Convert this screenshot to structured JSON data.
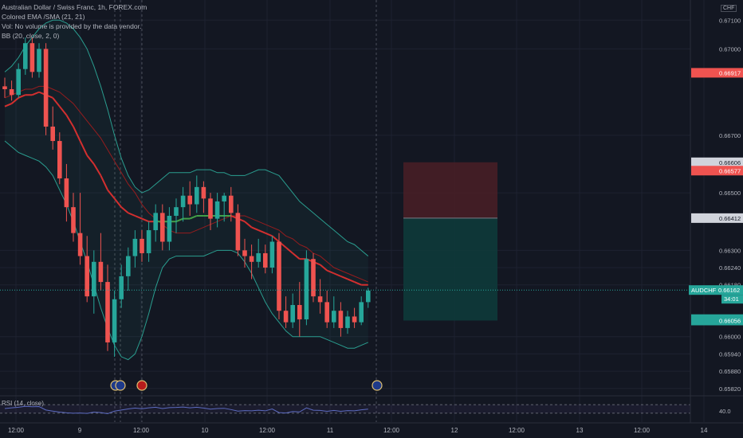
{
  "legend": {
    "title": "Australian Dollar / Swiss Franc, 1h, FOREX.com",
    "ema": "Colored EMA /SMA (21, 21)",
    "vol": "Vol: No volume is provided by the data vendor.",
    "bb": "BB (20, close, 2, 0)"
  },
  "rsi_label": "RSI (14, close)",
  "rsi_value": "40.0",
  "currency": "CHF",
  "colors": {
    "background": "#131722",
    "up": "#26a69a",
    "down": "#ef5350",
    "ema": "#d32f2f",
    "sma": "#43a047",
    "bb": "#2a9d8f",
    "rsi": "#2962ff",
    "stop_zone": "#4a1f26",
    "target_zone": "#0e3a3a"
  },
  "chart_data": {
    "type": "candlestick",
    "symbol": "AUDCHF",
    "interval": "1h",
    "ylim": [
      0.658,
      0.6717
    ],
    "y_ticks": [
      "0.67100",
      "0.67000",
      "0.66700",
      "0.66500",
      "0.66300",
      "0.66240",
      "0.66180",
      "0.66000",
      "0.65940",
      "0.65880",
      "0.65820"
    ],
    "x_ticks": [
      "12:00",
      "9",
      "12:00",
      "10",
      "12:00",
      "11",
      "12:00",
      "12",
      "12:00",
      "13",
      "12:00",
      "14"
    ],
    "price_tags": [
      {
        "label": "0.66917",
        "value": 0.66917,
        "color": "#ef5350"
      },
      {
        "label": "0.66606",
        "value": 0.66606,
        "color": "#d1d4dc"
      },
      {
        "label": "0.66577",
        "value": 0.66577,
        "color": "#ef5350"
      },
      {
        "label": "0.66412",
        "value": 0.66412,
        "color": "#d1d4dc"
      },
      {
        "label": "0.66061",
        "value": 0.66061,
        "color": "#26a69a"
      },
      {
        "label": "0.66056",
        "value": 0.66056,
        "color": "#26a69a"
      }
    ],
    "current": {
      "symbol": "AUDCHF",
      "price": "0.66162",
      "value": 0.66162,
      "countdown": "34:01"
    },
    "position": {
      "entry": 0.66412,
      "stop": 0.66606,
      "target": 0.66056
    },
    "candles": [
      [
        0.6687,
        0.669,
        0.6683,
        0.6686
      ],
      [
        0.6686,
        0.6689,
        0.6682,
        0.6684
      ],
      [
        0.6684,
        0.6695,
        0.6683,
        0.6693
      ],
      [
        0.6693,
        0.6704,
        0.6691,
        0.6702
      ],
      [
        0.6702,
        0.6704,
        0.669,
        0.6692
      ],
      [
        0.6692,
        0.6702,
        0.669,
        0.67
      ],
      [
        0.67,
        0.6702,
        0.667,
        0.6673
      ],
      [
        0.6673,
        0.668,
        0.6665,
        0.6668
      ],
      [
        0.6668,
        0.6671,
        0.6653,
        0.6655
      ],
      [
        0.6655,
        0.666,
        0.664,
        0.6645
      ],
      [
        0.6645,
        0.665,
        0.6633,
        0.6636
      ],
      [
        0.6636,
        0.665,
        0.6625,
        0.6628
      ],
      [
        0.6628,
        0.6635,
        0.6612,
        0.6614
      ],
      [
        0.6614,
        0.663,
        0.6608,
        0.6626
      ],
      [
        0.6626,
        0.6636,
        0.6616,
        0.6619
      ],
      [
        0.6619,
        0.6625,
        0.6595,
        0.6598
      ],
      [
        0.6598,
        0.6616,
        0.6593,
        0.6613
      ],
      [
        0.6613,
        0.6625,
        0.661,
        0.6621
      ],
      [
        0.6621,
        0.6631,
        0.6616,
        0.6628
      ],
      [
        0.6628,
        0.6637,
        0.6624,
        0.6634
      ],
      [
        0.6634,
        0.6637,
        0.6626,
        0.6629
      ],
      [
        0.6629,
        0.664,
        0.6626,
        0.6637
      ],
      [
        0.6637,
        0.6646,
        0.6633,
        0.6643
      ],
      [
        0.6643,
        0.6646,
        0.663,
        0.6633
      ],
      [
        0.6633,
        0.6645,
        0.663,
        0.6642
      ],
      [
        0.6642,
        0.6648,
        0.6636,
        0.6645
      ],
      [
        0.6645,
        0.6652,
        0.664,
        0.6649
      ],
      [
        0.6649,
        0.6654,
        0.6642,
        0.6646
      ],
      [
        0.6646,
        0.6656,
        0.6643,
        0.6652
      ],
      [
        0.6652,
        0.6654,
        0.6643,
        0.6648
      ],
      [
        0.6648,
        0.665,
        0.6637,
        0.6641
      ],
      [
        0.6641,
        0.665,
        0.6638,
        0.6647
      ],
      [
        0.6647,
        0.665,
        0.664,
        0.6649
      ],
      [
        0.6649,
        0.6652,
        0.664,
        0.6643
      ],
      [
        0.6643,
        0.6646,
        0.6628,
        0.663
      ],
      [
        0.663,
        0.6634,
        0.6624,
        0.6628
      ],
      [
        0.6628,
        0.6632,
        0.662,
        0.6626
      ],
      [
        0.6626,
        0.6634,
        0.6624,
        0.6629
      ],
      [
        0.6629,
        0.6632,
        0.6622,
        0.6624
      ],
      [
        0.6624,
        0.6635,
        0.6622,
        0.6633
      ],
      [
        0.6633,
        0.6636,
        0.6606,
        0.6609
      ],
      [
        0.6609,
        0.6614,
        0.6603,
        0.6605
      ],
      [
        0.6605,
        0.6615,
        0.6603,
        0.6611
      ],
      [
        0.6611,
        0.6619,
        0.66,
        0.6606
      ],
      [
        0.6606,
        0.663,
        0.6604,
        0.6627
      ],
      [
        0.6627,
        0.6629,
        0.6612,
        0.6614
      ],
      [
        0.6614,
        0.662,
        0.6608,
        0.6612
      ],
      [
        0.6612,
        0.6616,
        0.6603,
        0.6605
      ],
      [
        0.6605,
        0.6614,
        0.6603,
        0.6609
      ],
      [
        0.6609,
        0.6612,
        0.66,
        0.6603
      ],
      [
        0.6603,
        0.6609,
        0.6601,
        0.6607
      ],
      [
        0.6607,
        0.661,
        0.6603,
        0.6605
      ],
      [
        0.6605,
        0.6614,
        0.6604,
        0.6612
      ],
      [
        0.6612,
        0.6617,
        0.661,
        0.6616
      ]
    ],
    "ema": [
      0.668,
      0.6681,
      0.6683,
      0.6684,
      0.6684,
      0.6685,
      0.6684,
      0.6683,
      0.668,
      0.6677,
      0.6673,
      0.6668,
      0.6663,
      0.666,
      0.6656,
      0.6651,
      0.6648,
      0.6645,
      0.6643,
      0.6642,
      0.6641,
      0.664,
      0.664,
      0.664,
      0.664,
      0.664,
      0.6641,
      0.6641,
      0.6642,
      0.6642,
      0.6642,
      0.6642,
      0.6642,
      0.6642,
      0.6641,
      0.664,
      0.6638,
      0.6637,
      0.6636,
      0.6635,
      0.6633,
      0.6631,
      0.6629,
      0.6627,
      0.6627,
      0.6626,
      0.6625,
      0.6623,
      0.6622,
      0.6621,
      0.662,
      0.6619,
      0.6618,
      0.6618
    ],
    "sma": [
      0.6683,
      0.6684,
      0.6685,
      0.6686,
      0.6686,
      0.6687,
      0.6687,
      0.6686,
      0.6685,
      0.6683,
      0.6681,
      0.6678,
      0.6675,
      0.6672,
      0.6669,
      0.6665,
      0.6661,
      0.6657,
      0.6653,
      0.665,
      0.6646,
      0.6643,
      0.6641,
      0.6639,
      0.6637,
      0.6636,
      0.6636,
      0.6636,
      0.6637,
      0.6638,
      0.6639,
      0.664,
      0.6641,
      0.6642,
      0.6642,
      0.6642,
      0.6641,
      0.664,
      0.6639,
      0.6638,
      0.6637,
      0.6635,
      0.6634,
      0.6632,
      0.6631,
      0.6629,
      0.6628,
      0.6626,
      0.6624,
      0.6623,
      0.6622,
      0.6621,
      0.662,
      0.6619
    ],
    "bb_upper": [
      0.6692,
      0.6694,
      0.6697,
      0.6701,
      0.6704,
      0.6707,
      0.6709,
      0.671,
      0.671,
      0.6709,
      0.6707,
      0.6704,
      0.67,
      0.6694,
      0.6687,
      0.6679,
      0.667,
      0.6662,
      0.6656,
      0.6652,
      0.665,
      0.6651,
      0.6653,
      0.6655,
      0.6657,
      0.6657,
      0.6657,
      0.6657,
      0.6658,
      0.6658,
      0.6658,
      0.6657,
      0.6657,
      0.6656,
      0.6656,
      0.6656,
      0.6657,
      0.6658,
      0.6658,
      0.6657,
      0.6656,
      0.6653,
      0.665,
      0.6647,
      0.6645,
      0.6643,
      0.6641,
      0.6639,
      0.6637,
      0.6635,
      0.6633,
      0.6632,
      0.663,
      0.6628
    ],
    "bb_lower": [
      0.6668,
      0.6666,
      0.6664,
      0.6663,
      0.6662,
      0.6661,
      0.6659,
      0.6656,
      0.6651,
      0.6646,
      0.664,
      0.6633,
      0.6626,
      0.6618,
      0.661,
      0.6603,
      0.6597,
      0.6593,
      0.6592,
      0.6594,
      0.66,
      0.6608,
      0.6617,
      0.6624,
      0.6627,
      0.6628,
      0.6628,
      0.6628,
      0.6628,
      0.6628,
      0.6629,
      0.663,
      0.663,
      0.663,
      0.6629,
      0.6626,
      0.6622,
      0.6617,
      0.6612,
      0.6608,
      0.6605,
      0.6602,
      0.66,
      0.66,
      0.66,
      0.66,
      0.66,
      0.6599,
      0.6598,
      0.6597,
      0.6596,
      0.6596,
      0.6597,
      0.6598
    ],
    "rsi": [
      52,
      55,
      58,
      62,
      60,
      61,
      45,
      40,
      35,
      32,
      30,
      31,
      29,
      35,
      33,
      28,
      40,
      45,
      50,
      54,
      51,
      55,
      58,
      52,
      56,
      57,
      59,
      55,
      58,
      54,
      49,
      52,
      53,
      47,
      40,
      42,
      41,
      44,
      41,
      50,
      33,
      31,
      38,
      36,
      55,
      44,
      43,
      39,
      43,
      39,
      42,
      41,
      46,
      49
    ]
  }
}
